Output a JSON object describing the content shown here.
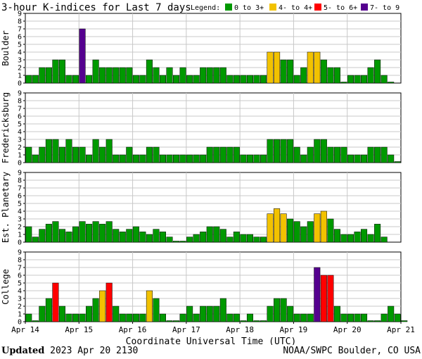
{
  "chart_data": {
    "type": "bar",
    "title": "3-hour K-indices for Last 7 days",
    "legend": {
      "label": "Legend:",
      "placement": "top-right",
      "entries": [
        {
          "label": "0 to 3+",
          "color": "#009900"
        },
        {
          "label": "4- to 4+",
          "color": "#f2c200"
        },
        {
          "label": "5- to 6+",
          "color": "#ff0000"
        },
        {
          "label": "7- to 9",
          "color": "#55008f"
        }
      ]
    },
    "xlabel": "Coordinate Universal Time (UTC)",
    "x_ticks": [
      "Apr 14",
      "Apr 15",
      "Apr 16",
      "Apr 17",
      "Apr 18",
      "Apr 19",
      "Apr 20",
      "Apr 21"
    ],
    "y_ticks": [
      0,
      1,
      2,
      3,
      4,
      5,
      6,
      7,
      8,
      9
    ],
    "ylim": [
      0,
      9
    ],
    "interval_hours": 3,
    "grid": true,
    "panels": [
      {
        "name": "Boulder",
        "values": [
          1,
          1,
          2,
          2,
          3,
          3,
          1,
          1,
          7,
          1,
          3,
          2,
          2,
          2,
          2,
          2,
          1,
          1,
          3,
          2,
          1,
          2,
          1,
          2,
          1,
          1,
          2,
          2,
          2,
          2,
          1,
          1,
          1,
          1,
          1,
          1,
          4,
          4,
          3,
          3,
          1,
          2,
          4,
          4,
          3,
          2,
          2,
          0,
          1,
          1,
          1,
          2,
          3,
          1,
          0
        ]
      },
      {
        "name": "Fredericksburg",
        "values": [
          2,
          1,
          2,
          3,
          3,
          2,
          3,
          2,
          2,
          1,
          3,
          2,
          3,
          1,
          1,
          2,
          1,
          1,
          2,
          2,
          1,
          1,
          1,
          1,
          1,
          1,
          1,
          2,
          2,
          2,
          2,
          2,
          1,
          1,
          1,
          1,
          3,
          3,
          3,
          3,
          2,
          1,
          2,
          3,
          3,
          2,
          2,
          2,
          1,
          1,
          1,
          2,
          2,
          2,
          1,
          0
        ]
      },
      {
        "name": "Est. Planetary",
        "values": [
          2,
          0.67,
          1.67,
          2.33,
          2.67,
          1.67,
          1.33,
          2,
          2.67,
          2.33,
          2.67,
          2.33,
          2.67,
          1.67,
          1.33,
          1.67,
          2,
          1.33,
          1,
          1.67,
          1.33,
          0.67,
          0,
          0,
          0.67,
          1,
          1.33,
          2,
          2,
          1.67,
          0.67,
          1.33,
          1,
          1,
          0.67,
          0.67,
          3.67,
          4.33,
          3.67,
          3,
          2.67,
          2,
          2.67,
          3.67,
          4,
          3,
          1.67,
          1,
          1,
          1.33,
          1.67,
          1,
          2.33,
          0.67
        ]
      },
      {
        "name": "College",
        "values": [
          1,
          0,
          2,
          3,
          5,
          2,
          1,
          1,
          1,
          2,
          3,
          4,
          5,
          2,
          1,
          1,
          1,
          1,
          4,
          3,
          1,
          0,
          0,
          1,
          2,
          1,
          2,
          2,
          2,
          3,
          1,
          1,
          0,
          1,
          0,
          0,
          2,
          3,
          3,
          2,
          1,
          1,
          1,
          7,
          6,
          6,
          2,
          1,
          1,
          1,
          1,
          0,
          0,
          1,
          2,
          1,
          0
        ]
      }
    ]
  },
  "footer": {
    "updated_label": "Updated",
    "updated_value": "2023 Apr 20 2130",
    "source": "NOAA/SWPC Boulder, CO USA"
  }
}
